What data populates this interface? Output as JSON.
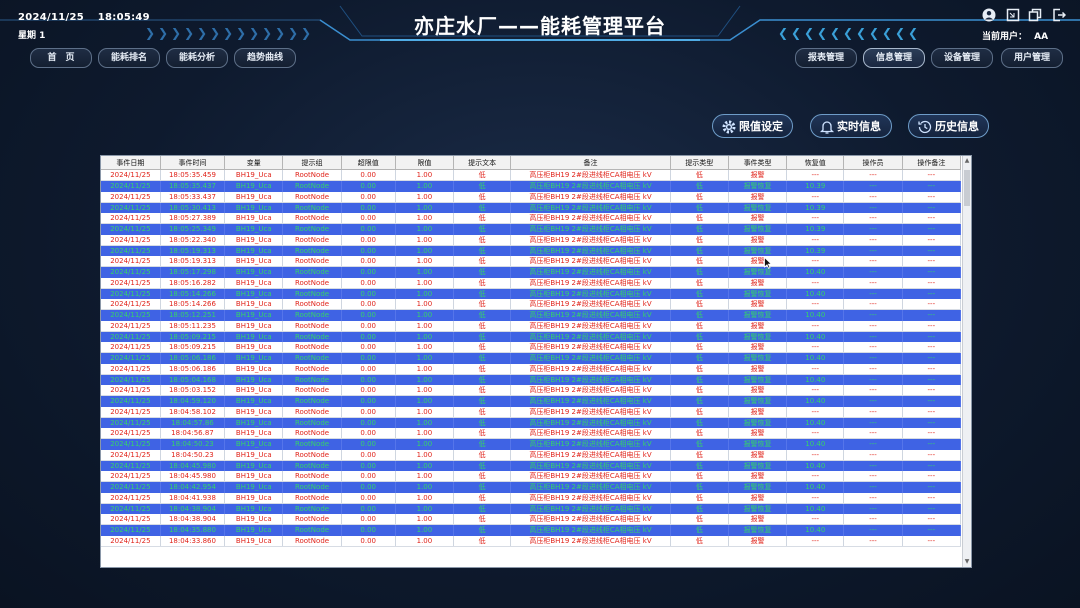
{
  "header": {
    "date": "2024/11/25",
    "time": "18:05:49",
    "weekday": "星期 1",
    "title": "亦庄水厂——能耗管理平台",
    "current_user_label": "当前用户：",
    "current_user": "AA"
  },
  "nav_left": [
    "首　页",
    "能耗排名",
    "能耗分析",
    "趋势曲线"
  ],
  "nav_right": [
    "报表管理",
    "信息管理",
    "设备管理",
    "用户管理"
  ],
  "active_nav": "信息管理",
  "actions": {
    "threshold": "限值设定",
    "realtime": "实时信息",
    "history": "历史信息"
  },
  "icons": {
    "user": "user-icon",
    "window": "window-icon",
    "copy": "copy-icon",
    "logout": "logout-icon",
    "gear": "gear-icon",
    "bell": "bell-icon",
    "history": "history-clock-icon"
  },
  "colors": {
    "alarm_text": "#e0241b",
    "recover_row_bg": "#3f63e4",
    "recover_text": "#36d26a"
  },
  "table": {
    "columns": [
      "事件日期",
      "事件时间",
      "变量",
      "提示组",
      "超限值",
      "限值",
      "提示文本",
      "备注",
      "提示类型",
      "事件类型",
      "恢复值",
      "操作员",
      "操作备注"
    ],
    "rows": [
      [
        "2024/11/25",
        "18:05:35.459",
        "BH19_Uca",
        "RootNode",
        "0.00",
        "1.00",
        "低",
        "高压柜BH19 2#段进线柜CA相电压 kV",
        "低",
        "报警",
        "---",
        "---",
        "---"
      ],
      [
        "2024/11/25",
        "18:05:35.437",
        "BH19_Uca",
        "RootNode",
        "0.00",
        "1.00",
        "低",
        "高压柜BH19 2#段进线柜CA相电压 kV",
        "低",
        "报警恢复",
        "10.39",
        "---",
        "---"
      ],
      [
        "2024/11/25",
        "18:05:33.437",
        "BH19_Uca",
        "RootNode",
        "0.00",
        "1.00",
        "低",
        "高压柜BH19 2#段进线柜CA相电压 kV",
        "低",
        "报警",
        "---",
        "---",
        "---"
      ],
      [
        "2024/11/25",
        "18:05:30.413",
        "BH19_Uca",
        "RootNode",
        "0.00",
        "1.00",
        "低",
        "高压柜BH19 2#段进线柜CA相电压 kV",
        "低",
        "报警恢复",
        "10.39",
        "---",
        "---"
      ],
      [
        "2024/11/25",
        "18:05:27.389",
        "BH19_Uca",
        "RootNode",
        "0.00",
        "1.00",
        "低",
        "高压柜BH19 2#段进线柜CA相电压 kV",
        "低",
        "报警",
        "---",
        "---",
        "---"
      ],
      [
        "2024/11/25",
        "18:05:25.349",
        "BH19_Uca",
        "RootNode",
        "0.00",
        "1.00",
        "低",
        "高压柜BH19 2#段进线柜CA相电压 kV",
        "低",
        "报警恢复",
        "10.39",
        "---",
        "---"
      ],
      [
        "2024/11/25",
        "18:05:22.340",
        "BH19_Uca",
        "RootNode",
        "0.00",
        "1.00",
        "低",
        "高压柜BH19 2#段进线柜CA相电压 kV",
        "低",
        "报警",
        "---",
        "---",
        "---"
      ],
      [
        "2024/11/25",
        "18:05:19.313",
        "BH19_Uca",
        "RootNode",
        "0.00",
        "1.00",
        "低",
        "高压柜BH19 2#段进线柜CA相电压 kV",
        "低",
        "报警恢复",
        "10.39",
        "---",
        "---"
      ],
      [
        "2024/11/25",
        "18:05:19.313",
        "BH19_Uca",
        "RootNode",
        "0.00",
        "1.00",
        "低",
        "高压柜BH19 2#段进线柜CA相电压 kV",
        "低",
        "报警",
        "---",
        "---",
        "---"
      ],
      [
        "2024/11/25",
        "18:05:17.298",
        "BH19_Uca",
        "RootNode",
        "0.00",
        "1.00",
        "低",
        "高压柜BH19 2#段进线柜CA相电压 kV",
        "低",
        "报警恢复",
        "10.40",
        "---",
        "---"
      ],
      [
        "2024/11/25",
        "18:05:16.282",
        "BH19_Uca",
        "RootNode",
        "0.00",
        "1.00",
        "低",
        "高压柜BH19 2#段进线柜CA相电压 kV",
        "低",
        "报警",
        "---",
        "---",
        "---"
      ],
      [
        "2024/11/25",
        "18:05:14.266",
        "BH19_Uca",
        "RootNode",
        "0.00",
        "1.00",
        "低",
        "高压柜BH19 2#段进线柜CA相电压 kV",
        "低",
        "报警恢复",
        "10.40",
        "---",
        "---"
      ],
      [
        "2024/11/25",
        "18:05:14.266",
        "BH19_Uca",
        "RootNode",
        "0.00",
        "1.00",
        "低",
        "高压柜BH19 2#段进线柜CA相电压 kV",
        "低",
        "报警",
        "---",
        "---",
        "---"
      ],
      [
        "2024/11/25",
        "18:05:12.251",
        "BH19_Uca",
        "RootNode",
        "0.00",
        "1.00",
        "低",
        "高压柜BH19 2#段进线柜CA相电压 kV",
        "低",
        "报警恢复",
        "10.40",
        "---",
        "---"
      ],
      [
        "2024/11/25",
        "18:05:11.235",
        "BH19_Uca",
        "RootNode",
        "0.00",
        "1.00",
        "低",
        "高压柜BH19 2#段进线柜CA相电压 kV",
        "低",
        "报警",
        "---",
        "---",
        "---"
      ],
      [
        "2024/11/25",
        "18:05:09.215",
        "BH19_Uca",
        "RootNode",
        "0.00",
        "1.00",
        "低",
        "高压柜BH19 2#段进线柜CA相电压 kV",
        "低",
        "报警恢复",
        "10.40",
        "---",
        "---"
      ],
      [
        "2024/11/25",
        "18:05:09.215",
        "BH19_Uca",
        "RootNode",
        "0.00",
        "1.00",
        "低",
        "高压柜BH19 2#段进线柜CA相电压 kV",
        "低",
        "报警",
        "---",
        "---",
        "---"
      ],
      [
        "2024/11/25",
        "18:05:06.186",
        "BH19_Uca",
        "RootNode",
        "0.00",
        "1.00",
        "低",
        "高压柜BH19 2#段进线柜CA相电压 kV",
        "低",
        "报警恢复",
        "10.40",
        "---",
        "---"
      ],
      [
        "2024/11/25",
        "18:05:06.186",
        "BH19_Uca",
        "RootNode",
        "0.00",
        "1.00",
        "低",
        "高压柜BH19 2#段进线柜CA相电压 kV",
        "低",
        "报警",
        "---",
        "---",
        "---"
      ],
      [
        "2024/11/25",
        "18:05:04.168",
        "BH19_Uca",
        "RootNode",
        "0.00",
        "1.00",
        "低",
        "高压柜BH19 2#段进线柜CA相电压 kV",
        "低",
        "报警恢复",
        "10.40",
        "---",
        "---"
      ],
      [
        "2024/11/25",
        "18:05:03.152",
        "BH19_Uca",
        "RootNode",
        "0.00",
        "1.00",
        "低",
        "高压柜BH19 2#段进线柜CA相电压 kV",
        "低",
        "报警",
        "---",
        "---",
        "---"
      ],
      [
        "2024/11/25",
        "18:04:59.120",
        "BH19_Uca",
        "RootNode",
        "0.00",
        "1.00",
        "低",
        "高压柜BH19 2#段进线柜CA相电压 kV",
        "低",
        "报警恢复",
        "10.40",
        "---",
        "---"
      ],
      [
        "2024/11/25",
        "18:04:58.102",
        "BH19_Uca",
        "RootNode",
        "0.00",
        "1.00",
        "低",
        "高压柜BH19 2#段进线柜CA相电压 kV",
        "低",
        "报警",
        "---",
        "---",
        "---"
      ],
      [
        "2024/11/25",
        "18:04:57.86",
        "BH19_Uca",
        "RootNode",
        "0.00",
        "1.00",
        "低",
        "高压柜BH19 2#段进线柜CA相电压 kV",
        "低",
        "报警恢复",
        "10.40",
        "---",
        "---"
      ],
      [
        "2024/11/25",
        "18:04:56.87",
        "BH19_Uca",
        "RootNode",
        "0.00",
        "1.00",
        "低",
        "高压柜BH19 2#段进线柜CA相电压 kV",
        "低",
        "报警",
        "---",
        "---",
        "---"
      ],
      [
        "2024/11/25",
        "18:04:50.23",
        "BH19_Uca",
        "RootNode",
        "0.00",
        "1.00",
        "低",
        "高压柜BH19 2#段进线柜CA相电压 kV",
        "低",
        "报警恢复",
        "10.40",
        "---",
        "---"
      ],
      [
        "2024/11/25",
        "18:04:50.23",
        "BH19_Uca",
        "RootNode",
        "0.00",
        "1.00",
        "低",
        "高压柜BH19 2#段进线柜CA相电压 kV",
        "低",
        "报警",
        "---",
        "---",
        "---"
      ],
      [
        "2024/11/25",
        "18:04:45.980",
        "BH19_Uca",
        "RootNode",
        "0.00",
        "1.00",
        "低",
        "高压柜BH19 2#段进线柜CA相电压 kV",
        "低",
        "报警恢复",
        "10.40",
        "---",
        "---"
      ],
      [
        "2024/11/25",
        "18:04:45.980",
        "BH19_Uca",
        "RootNode",
        "0.00",
        "1.00",
        "低",
        "高压柜BH19 2#段进线柜CA相电压 kV",
        "低",
        "报警",
        "---",
        "---",
        "---"
      ],
      [
        "2024/11/25",
        "18:04:42.954",
        "BH19_Uca",
        "RootNode",
        "0.00",
        "1.00",
        "低",
        "高压柜BH19 2#段进线柜CA相电压 kV",
        "低",
        "报警恢复",
        "10.40",
        "---",
        "---"
      ],
      [
        "2024/11/25",
        "18:04:41.938",
        "BH19_Uca",
        "RootNode",
        "0.00",
        "1.00",
        "低",
        "高压柜BH19 2#段进线柜CA相电压 kV",
        "低",
        "报警",
        "---",
        "---",
        "---"
      ],
      [
        "2024/11/25",
        "18:04:38.904",
        "BH19_Uca",
        "RootNode",
        "0.00",
        "1.00",
        "低",
        "高压柜BH19 2#段进线柜CA相电压 kV",
        "低",
        "报警恢复",
        "10.40",
        "---",
        "---"
      ],
      [
        "2024/11/25",
        "18:04:38.904",
        "BH19_Uca",
        "RootNode",
        "0.00",
        "1.00",
        "低",
        "高压柜BH19 2#段进线柜CA相电压 kV",
        "低",
        "报警",
        "---",
        "---",
        "---"
      ],
      [
        "2024/11/25",
        "18:04:35.880",
        "BH19_Uca",
        "RootNode",
        "0.00",
        "1.00",
        "低",
        "高压柜BH19 2#段进线柜CA相电压 kV",
        "低",
        "报警恢复",
        "10.40",
        "---",
        "---"
      ],
      [
        "2024/11/25",
        "18:04:33.860",
        "BH19_Uca",
        "RootNode",
        "0.00",
        "1.00",
        "低",
        "高压柜BH19 2#段进线柜CA相电压 kV",
        "低",
        "报警",
        "---",
        "---",
        "---"
      ]
    ]
  }
}
